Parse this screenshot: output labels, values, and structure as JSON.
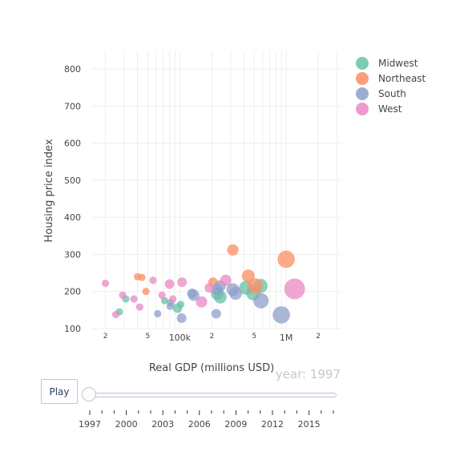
{
  "chart_data": {
    "type": "scatter",
    "x_scale": "log",
    "xlim": [
      15000,
      3300000
    ],
    "ylim": [
      100,
      850
    ],
    "xlabel": "Real GDP (millions USD)",
    "ylabel": "Housing price index",
    "y_ticks": [
      100,
      200,
      300,
      400,
      500,
      600,
      700,
      800
    ],
    "x_major_ticks": [
      {
        "value": 100000,
        "label": "100k"
      },
      {
        "value": 1000000,
        "label": "1M"
      }
    ],
    "x_minor_ticks": [
      {
        "value": 20000,
        "label": "2"
      },
      {
        "value": 50000,
        "label": "5"
      },
      {
        "value": 200000,
        "label": "2"
      },
      {
        "value": 500000,
        "label": "5"
      },
      {
        "value": 2000000,
        "label": "2"
      }
    ],
    "grid": true,
    "legend_position": "top-right",
    "series": [
      {
        "name": "Midwest",
        "color": "#66c2a5",
        "points": [
          {
            "x": 27000,
            "y": 145,
            "s": 1
          },
          {
            "x": 31000,
            "y": 180,
            "s": 1
          },
          {
            "x": 72000,
            "y": 175,
            "s": 1
          },
          {
            "x": 95000,
            "y": 155,
            "s": 2
          },
          {
            "x": 102000,
            "y": 165,
            "s": 1
          },
          {
            "x": 225000,
            "y": 195,
            "s": 4
          },
          {
            "x": 240000,
            "y": 185,
            "s": 4
          },
          {
            "x": 420000,
            "y": 210,
            "s": 5
          },
          {
            "x": 490000,
            "y": 195,
            "s": 5
          },
          {
            "x": 575000,
            "y": 215,
            "s": 5
          }
        ]
      },
      {
        "name": "Northeast",
        "color": "#fc8d62",
        "points": [
          {
            "x": 40000,
            "y": 240,
            "s": 1
          },
          {
            "x": 44000,
            "y": 238,
            "s": 1
          },
          {
            "x": 48000,
            "y": 200,
            "s": 1
          },
          {
            "x": 205000,
            "y": 225,
            "s": 2
          },
          {
            "x": 315000,
            "y": 312,
            "s": 3
          },
          {
            "x": 440000,
            "y": 242,
            "s": 4
          },
          {
            "x": 510000,
            "y": 215,
            "s": 6
          },
          {
            "x": 1000000,
            "y": 287,
            "s": 8
          }
        ]
      },
      {
        "name": "South",
        "color": "#8da0cb",
        "points": [
          {
            "x": 62000,
            "y": 140,
            "s": 1
          },
          {
            "x": 81000,
            "y": 160,
            "s": 1
          },
          {
            "x": 82000,
            "y": 170,
            "s": 1
          },
          {
            "x": 104000,
            "y": 128,
            "s": 2
          },
          {
            "x": 130000,
            "y": 195,
            "s": 2
          },
          {
            "x": 135000,
            "y": 190,
            "s": 3
          },
          {
            "x": 220000,
            "y": 140,
            "s": 2
          },
          {
            "x": 225000,
            "y": 205,
            "s": 3
          },
          {
            "x": 240000,
            "y": 215,
            "s": 3
          },
          {
            "x": 315000,
            "y": 205,
            "s": 4
          },
          {
            "x": 335000,
            "y": 195,
            "s": 4
          },
          {
            "x": 580000,
            "y": 175,
            "s": 6
          },
          {
            "x": 900000,
            "y": 137,
            "s": 8
          }
        ]
      },
      {
        "name": "West",
        "color": "#e78ac3",
        "points": [
          {
            "x": 20000,
            "y": 222,
            "s": 1
          },
          {
            "x": 25000,
            "y": 138,
            "s": 1
          },
          {
            "x": 29000,
            "y": 190,
            "s": 1
          },
          {
            "x": 37000,
            "y": 180,
            "s": 1
          },
          {
            "x": 42000,
            "y": 158,
            "s": 1
          },
          {
            "x": 56000,
            "y": 230,
            "s": 1
          },
          {
            "x": 68000,
            "y": 190,
            "s": 1
          },
          {
            "x": 80000,
            "y": 220,
            "s": 2
          },
          {
            "x": 86000,
            "y": 180,
            "s": 1
          },
          {
            "x": 105000,
            "y": 225,
            "s": 2
          },
          {
            "x": 160000,
            "y": 172,
            "s": 3
          },
          {
            "x": 190000,
            "y": 210,
            "s": 2
          },
          {
            "x": 270000,
            "y": 230,
            "s": 3
          },
          {
            "x": 1200000,
            "y": 207,
            "s": 12
          }
        ]
      }
    ]
  },
  "animation": {
    "current_year": "year: 1997",
    "play_label": "Play",
    "slider_ticks": [
      "1997",
      "2000",
      "2003",
      "2006",
      "2009",
      "2012",
      "2015"
    ],
    "slider_value": 0
  }
}
